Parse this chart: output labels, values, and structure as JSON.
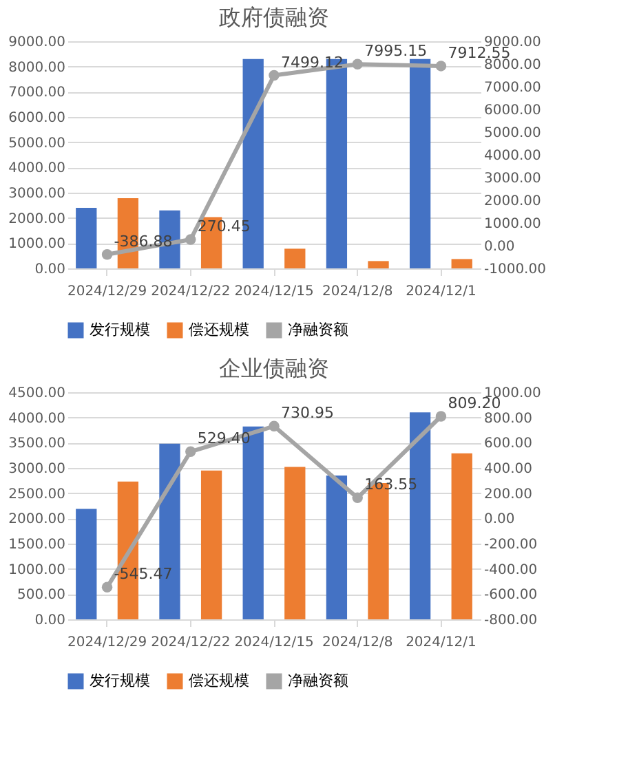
{
  "chart_data": [
    {
      "type": "bar",
      "title": "政府债融资",
      "categories": [
        "2024/12/29",
        "2024/12/22",
        "2024/12/15",
        "2024/12/8",
        "2024/12/1"
      ],
      "series": [
        {
          "name": "发行规模",
          "color": "#4472c4",
          "values": [
            2400,
            2300,
            8300,
            8300,
            8300
          ]
        },
        {
          "name": "偿还规模",
          "color": "#ed7d31",
          "values": [
            2780,
            2030,
            780,
            290,
            370
          ]
        },
        {
          "name": "净融资额",
          "color": "#a5a5a5",
          "type": "line",
          "axis": "y2",
          "marker": "circle",
          "values": [
            -386.88,
            270.45,
            7499.12,
            7995.15,
            7912.55
          ],
          "value_labels": [
            "-386.88",
            "270.45",
            "7499.12",
            "7995.15",
            "7912.55"
          ]
        }
      ],
      "ylim": [
        0,
        9000
      ],
      "yticks": [
        {
          "value": 0,
          "label": "0.00"
        },
        {
          "value": 1000,
          "label": "1000.00"
        },
        {
          "value": 2000,
          "label": "2000.00"
        },
        {
          "value": 3000,
          "label": "3000.00"
        },
        {
          "value": 4000,
          "label": "4000.00"
        },
        {
          "value": 5000,
          "label": "5000.00"
        },
        {
          "value": 6000,
          "label": "6000.00"
        },
        {
          "value": 7000,
          "label": "7000.00"
        },
        {
          "value": 8000,
          "label": "8000.00"
        },
        {
          "value": 9000,
          "label": "9000.00"
        }
      ],
      "y2lim": [
        -1000,
        9000
      ],
      "y2ticks": [
        {
          "value": -1000,
          "label": "-1000.00"
        },
        {
          "value": 0,
          "label": "0.00"
        },
        {
          "value": 1000,
          "label": "1000.00"
        },
        {
          "value": 2000,
          "label": "2000.00"
        },
        {
          "value": 3000,
          "label": "3000.00"
        },
        {
          "value": 4000,
          "label": "4000.00"
        },
        {
          "value": 5000,
          "label": "5000.00"
        },
        {
          "value": 6000,
          "label": "6000.00"
        },
        {
          "value": 7000,
          "label": "7000.00"
        },
        {
          "value": 8000,
          "label": "8000.00"
        },
        {
          "value": 9000,
          "label": "9000.00"
        }
      ],
      "grid": "y",
      "legend": "bottom"
    },
    {
      "type": "bar",
      "title": "企业债融资",
      "categories": [
        "2024/12/29",
        "2024/12/22",
        "2024/12/15",
        "2024/12/8",
        "2024/12/1"
      ],
      "series": [
        {
          "name": "发行规模",
          "color": "#4472c4",
          "values": [
            2190,
            3480,
            3820,
            2850,
            4100
          ]
        },
        {
          "name": "偿还规模",
          "color": "#ed7d31",
          "values": [
            2730,
            2950,
            3020,
            2700,
            3290
          ]
        },
        {
          "name": "净融资额",
          "color": "#a5a5a5",
          "type": "line",
          "axis": "y2",
          "marker": "circle",
          "values": [
            -545.47,
            529.4,
            730.95,
            163.55,
            809.2
          ],
          "value_labels": [
            "-545.47",
            "529.40",
            "730.95",
            "163.55",
            "809.20"
          ]
        }
      ],
      "ylim": [
        0,
        4500
      ],
      "yticks": [
        {
          "value": 0,
          "label": "0.00"
        },
        {
          "value": 500,
          "label": "500.00"
        },
        {
          "value": 1000,
          "label": "1000.00"
        },
        {
          "value": 1500,
          "label": "1500.00"
        },
        {
          "value": 2000,
          "label": "2000.00"
        },
        {
          "value": 2500,
          "label": "2500.00"
        },
        {
          "value": 3000,
          "label": "3000.00"
        },
        {
          "value": 3500,
          "label": "3500.00"
        },
        {
          "value": 4000,
          "label": "4000.00"
        },
        {
          "value": 4500,
          "label": "4500.00"
        }
      ],
      "y2lim": [
        -800,
        1000
      ],
      "y2ticks": [
        {
          "value": -800,
          "label": "-800.00"
        },
        {
          "value": -600,
          "label": "-600.00"
        },
        {
          "value": -400,
          "label": "-400.00"
        },
        {
          "value": -200,
          "label": "-200.00"
        },
        {
          "value": 0,
          "label": "0.00"
        },
        {
          "value": 200,
          "label": "200.00"
        },
        {
          "value": 400,
          "label": "400.00"
        },
        {
          "value": 600,
          "label": "600.00"
        },
        {
          "value": 800,
          "label": "800.00"
        },
        {
          "value": 1000,
          "label": "1000.00"
        }
      ],
      "grid": "y",
      "legend": "bottom"
    }
  ]
}
